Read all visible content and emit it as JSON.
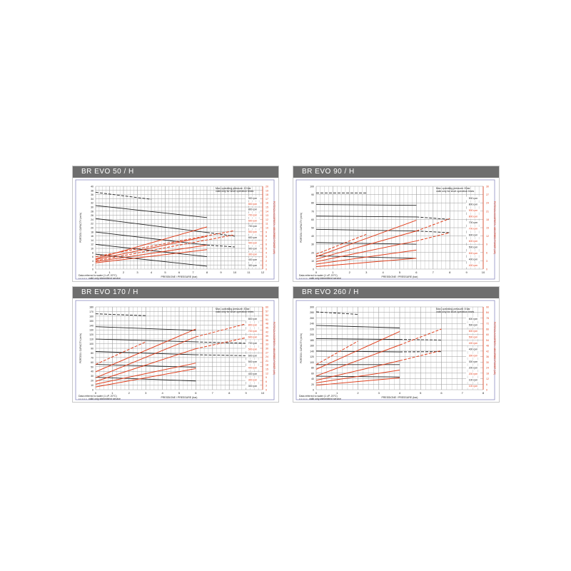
{
  "colors": {
    "capacity": "#222222",
    "power": "#e0401e",
    "grid": "#9a9a9a",
    "frame": "#8c8cc0",
    "header": "#6e6e6e"
  },
  "common": {
    "xlabel": "PRESSIONE / PRESSURE (bar)",
    "ylabel": "PORTATA / CAPACITY (m³/h)",
    "y2label": "POTENZA ASSORBITA / ABSORBED POWER (kW)",
    "note_water": "Data referred to water (1 cP, 20°C)",
    "note_dashed": "valid only intermittent service"
  },
  "chart_data": [
    {
      "type": "line",
      "title": "BR EVO 50 / H",
      "note": "Max. operating pressure: 10 bar",
      "note2": "valid only for short operation times",
      "xlim": [
        0,
        12
      ],
      "ylim": [
        0,
        40
      ],
      "ystep": 2,
      "y2lim": [
        0,
        20
      ],
      "y2step": 1,
      "grid": true,
      "rpm_labels": [
        {
          "t": "900 rpm",
          "c": "k"
        },
        {
          "t": "800 rpm",
          "c": "r"
        },
        {
          "t": "800 rpm",
          "c": "k"
        },
        {
          "t": "700 rpm",
          "c": "r"
        },
        {
          "t": "600 rpm",
          "c": "r"
        },
        {
          "t": "700 rpm",
          "c": "k"
        },
        {
          "t": "500 rpm",
          "c": "r"
        },
        {
          "t": "600 rpm",
          "c": "k"
        },
        {
          "t": "400 rpm",
          "c": "r"
        },
        {
          "t": "500 rpm",
          "c": "k"
        },
        {
          "t": "300 rpm",
          "c": "r"
        },
        {
          "t": "400 rpm",
          "c": "k"
        },
        {
          "t": "300 rpm",
          "c": "k"
        }
      ],
      "capacity": [
        {
          "pts": [
            [
              0,
              37.1
            ],
            [
              4,
              33.7
            ]
          ],
          "dash": true
        },
        {
          "pts": [
            [
              0,
              30.7
            ],
            [
              8,
              24.9
            ]
          ]
        },
        {
          "pts": [
            [
              0,
              24.4
            ],
            [
              8,
              17.7
            ]
          ]
        },
        {
          "pts": [
            [
              8,
              17.7
            ],
            [
              10,
              15.9
            ]
          ],
          "dash": true
        },
        {
          "pts": [
            [
              0,
              17.9
            ],
            [
              8,
              11.6
            ]
          ]
        },
        {
          "pts": [
            [
              8,
              11.6
            ],
            [
              10,
              10.7
            ]
          ],
          "dash": true
        },
        {
          "pts": [
            [
              0,
              11.9
            ],
            [
              8,
              6.0
            ]
          ]
        },
        {
          "pts": [
            [
              0,
              7.2
            ],
            [
              8,
              1.4
            ]
          ]
        }
      ],
      "power": [
        {
          "pts": [
            [
              0,
              2.5
            ],
            [
              8,
              10.2
            ]
          ]
        },
        {
          "pts": [
            [
              0,
              3.0
            ],
            [
              10,
              9.3
            ]
          ],
          "dash": true
        },
        {
          "pts": [
            [
              0,
              2.3
            ],
            [
              8,
              7.9
            ]
          ]
        },
        {
          "pts": [
            [
              0,
              2.0
            ],
            [
              10,
              8.3
            ]
          ],
          "dash": true
        },
        {
          "pts": [
            [
              0,
              1.8
            ],
            [
              8,
              5.8
            ]
          ]
        },
        {
          "pts": [
            [
              0,
              1.5
            ],
            [
              8,
              4.7
            ]
          ]
        }
      ]
    },
    {
      "type": "line",
      "title": "BR EVO 90 / H",
      "note": "Max. operating pressure: 8 bar",
      "note2": "valid only for short operation times",
      "xlim": [
        0,
        10
      ],
      "ylim": [
        0,
        100
      ],
      "ystep": 10,
      "y2lim": [
        0,
        30
      ],
      "y2step": 3,
      "grid": true,
      "rpm_labels": [
        {
          "t": "900 rpm",
          "c": "k"
        },
        {
          "t": "800 rpm",
          "c": "k"
        },
        {
          "t": "900 rpm",
          "c": "r"
        },
        {
          "t": "800 rpm",
          "c": "r"
        },
        {
          "t": "700 rpm",
          "c": "k"
        },
        {
          "t": "700 rpm",
          "c": "r"
        },
        {
          "t": "600 rpm",
          "c": "k"
        },
        {
          "t": "600 rpm",
          "c": "r"
        },
        {
          "t": "500 rpm",
          "c": "k"
        },
        {
          "t": "500 rpm",
          "c": "r"
        },
        {
          "t": "400 rpm",
          "c": "k"
        },
        {
          "t": "400 rpm",
          "c": "r"
        }
      ],
      "capacity": [
        {
          "pts": [
            [
              0,
              92
            ],
            [
              3,
              92
            ]
          ],
          "dash": true
        },
        {
          "pts": [
            [
              0,
              78
            ],
            [
              6,
              77
            ]
          ]
        },
        {
          "pts": [
            [
              0,
              64
            ],
            [
              6,
              63
            ]
          ]
        },
        {
          "pts": [
            [
              6,
              63
            ],
            [
              8,
              60
            ]
          ],
          "dash": true
        },
        {
          "pts": [
            [
              0,
              48
            ],
            [
              6,
              46
            ]
          ]
        },
        {
          "pts": [
            [
              6,
              46
            ],
            [
              8,
              44
            ]
          ],
          "dash": true
        },
        {
          "pts": [
            [
              0,
              32
            ],
            [
              6,
              30
            ]
          ]
        },
        {
          "pts": [
            [
              0,
              16
            ],
            [
              6,
              13
            ]
          ]
        }
      ],
      "power": [
        {
          "pts": [
            [
              0,
              5.4
            ],
            [
              3,
              12.6
            ]
          ],
          "dash": true
        },
        {
          "pts": [
            [
              0,
              4.5
            ],
            [
              6,
              17.7
            ]
          ]
        },
        {
          "pts": [
            [
              0,
              3.6
            ],
            [
              6,
              13.8
            ]
          ]
        },
        {
          "pts": [
            [
              6,
              13.8
            ],
            [
              8,
              18.3
            ]
          ],
          "dash": true
        },
        {
          "pts": [
            [
              0,
              2.7
            ],
            [
              6,
              10.2
            ]
          ]
        },
        {
          "pts": [
            [
              6,
              10.2
            ],
            [
              8,
              13.2
            ]
          ],
          "dash": true
        },
        {
          "pts": [
            [
              0,
              1.8
            ],
            [
              6,
              6.9
            ]
          ]
        },
        {
          "pts": [
            [
              0,
              0.9
            ],
            [
              6,
              3.9
            ]
          ]
        }
      ]
    },
    {
      "type": "line",
      "title": "BR EVO 170 / H",
      "note": "Max. operating pressure: 8 bar",
      "note2": "valid only for short operation times",
      "xlim": [
        0,
        10
      ],
      "ylim": [
        0,
        180
      ],
      "ystep": 10,
      "y2lim": [
        0,
        60
      ],
      "y2step": 3,
      "grid": true,
      "rpm_labels": [
        {
          "t": "800 rpm",
          "c": "k"
        },
        {
          "t": "800 rpm",
          "c": "r"
        },
        {
          "t": "700 rpm",
          "c": "r"
        },
        {
          "t": "600 rpm",
          "c": "r"
        },
        {
          "t": "700 rpm",
          "c": "k"
        },
        {
          "t": "500 rpm",
          "c": "r"
        },
        {
          "t": "600 rpm",
          "c": "k"
        },
        {
          "t": "500 rpm",
          "c": "k"
        },
        {
          "t": "400 rpm",
          "c": "r"
        },
        {
          "t": "400 rpm",
          "c": "k"
        },
        {
          "t": "300 rpm",
          "c": "r"
        },
        {
          "t": "300 rpm",
          "c": "k"
        }
      ],
      "capacity": [
        {
          "pts": [
            [
              0,
              165
            ],
            [
              3,
              161
            ]
          ],
          "dash": true
        },
        {
          "pts": [
            [
              0,
              137
            ],
            [
              6,
              129
            ]
          ]
        },
        {
          "pts": [
            [
              0,
              110
            ],
            [
              6,
              104
            ]
          ]
        },
        {
          "pts": [
            [
              6,
              104
            ],
            [
              9,
              101
            ]
          ],
          "dash": true
        },
        {
          "pts": [
            [
              0,
              83
            ],
            [
              6,
              76
            ]
          ]
        },
        {
          "pts": [
            [
              6,
              76
            ],
            [
              9,
              74
            ]
          ],
          "dash": true
        },
        {
          "pts": [
            [
              0,
              55
            ],
            [
              6,
              49
            ]
          ]
        },
        {
          "pts": [
            [
              0,
              27
            ],
            [
              6,
              19
            ]
          ]
        }
      ],
      "power": [
        {
          "pts": [
            [
              0,
              18.3
            ],
            [
              3,
              34.7
            ]
          ],
          "dash": true
        },
        {
          "pts": [
            [
              0,
              13
            ],
            [
              6,
              44
            ]
          ]
        },
        {
          "pts": [
            [
              0,
              8.7
            ],
            [
              6,
              38.3
            ]
          ]
        },
        {
          "pts": [
            [
              6,
              38.3
            ],
            [
              9,
              47.7
            ]
          ],
          "dash": true
        },
        {
          "pts": [
            [
              0,
              6
            ],
            [
              6,
              29.7
            ]
          ]
        },
        {
          "pts": [
            [
              6,
              29.7
            ],
            [
              9,
              37.7
            ]
          ],
          "dash": true
        },
        {
          "pts": [
            [
              0,
              4
            ],
            [
              6,
              19.3
            ]
          ]
        },
        {
          "pts": [
            [
              0,
              2
            ],
            [
              6,
              15.3
            ]
          ]
        }
      ]
    },
    {
      "type": "line",
      "title": "BR EVO 260 / H",
      "note": "Max. operating pressure: 8 bar",
      "note2": "valid only for short operation times",
      "xlim": [
        0,
        8
      ],
      "ylim": [
        0,
        300
      ],
      "ystep": 20,
      "y2lim": [
        0,
        90
      ],
      "y2step": 6,
      "grid": true,
      "rpm_labels": [
        {
          "t": "600 rpm",
          "c": "k"
        },
        {
          "t": "500 rpm",
          "c": "k"
        },
        {
          "t": "600 rpm",
          "c": "r"
        },
        {
          "t": "500 rpm",
          "c": "r"
        },
        {
          "t": "400 rpm",
          "c": "r"
        },
        {
          "t": "400 rpm",
          "c": "k"
        },
        {
          "t": "300 rpm",
          "c": "r"
        },
        {
          "t": "300 rpm",
          "c": "k"
        },
        {
          "t": "200 rpm",
          "c": "k"
        },
        {
          "t": "200 rpm",
          "c": "r"
        },
        {
          "t": "100 rpm",
          "c": "k"
        },
        {
          "t": "100 rpm",
          "c": "r"
        }
      ],
      "capacity": [
        {
          "pts": [
            [
              0,
              282
            ],
            [
              2,
              273
            ]
          ],
          "dash": true
        },
        {
          "pts": [
            [
              0,
              233
            ],
            [
              4,
              224
            ]
          ]
        },
        {
          "pts": [
            [
              0,
              185
            ],
            [
              4,
              182
            ]
          ]
        },
        {
          "pts": [
            [
              4,
              182
            ],
            [
              6,
              180
            ]
          ],
          "dash": true
        },
        {
          "pts": [
            [
              0,
              140
            ],
            [
              4,
              137
            ]
          ]
        },
        {
          "pts": [
            [
              4,
              137
            ],
            [
              6,
              138
            ]
          ],
          "dash": true
        },
        {
          "pts": [
            [
              0,
              91
            ],
            [
              4,
              91
            ]
          ]
        },
        {
          "pts": [
            [
              0,
              49
            ],
            [
              4,
              46
            ]
          ]
        }
      ],
      "power": [
        {
          "pts": [
            [
              0,
              27.3
            ],
            [
              2,
              52.8
            ]
          ],
          "dash": true
        },
        {
          "pts": [
            [
              0,
              22.2
            ],
            [
              4,
              63.3
            ]
          ]
        },
        {
          "pts": [
            [
              0,
              15
            ],
            [
              4,
              48.6
            ]
          ]
        },
        {
          "pts": [
            [
              4,
              48.6
            ],
            [
              6,
              66
            ]
          ],
          "dash": true
        },
        {
          "pts": [
            [
              0,
              10.2
            ],
            [
              4,
              31.5
            ]
          ]
        },
        {
          "pts": [
            [
              4,
              31.5
            ],
            [
              6,
              42.6
            ]
          ],
          "dash": true
        },
        {
          "pts": [
            [
              0,
              7.5
            ],
            [
              4,
              21.3
            ]
          ]
        },
        {
          "pts": [
            [
              0,
              4.8
            ],
            [
              4,
              12.9
            ]
          ]
        }
      ]
    }
  ]
}
